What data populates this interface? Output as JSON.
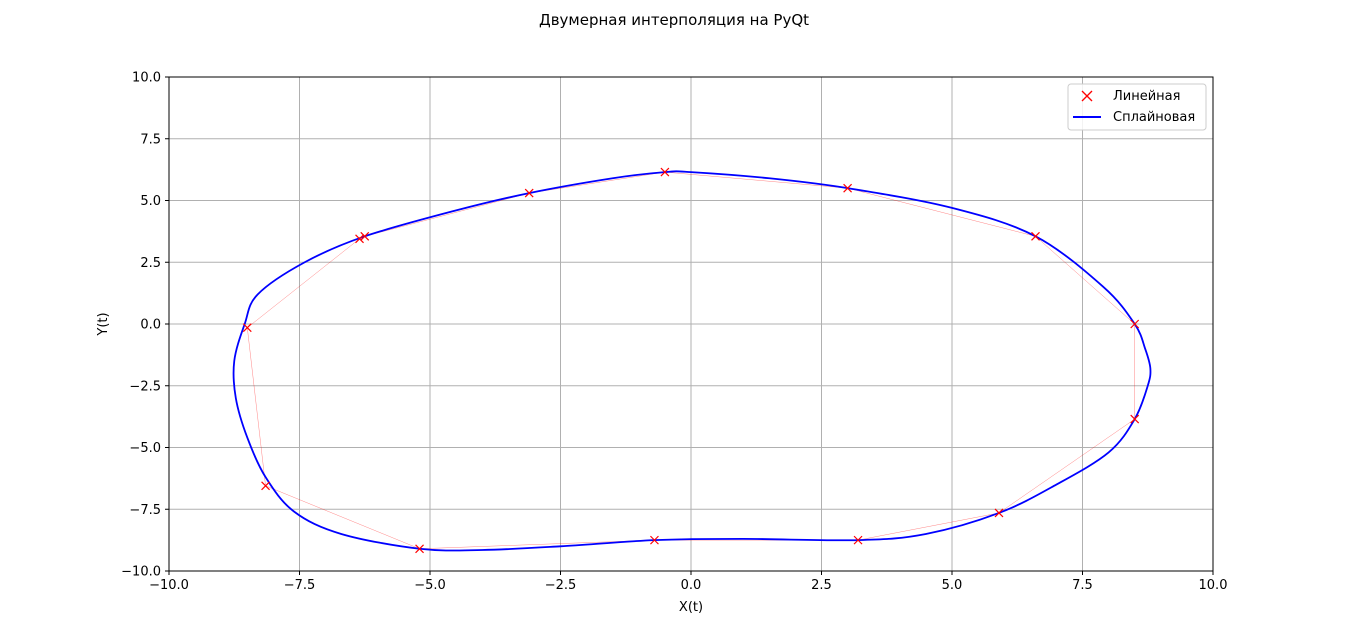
{
  "chart_data": {
    "type": "line",
    "title": "Двумерная интерполяция на PyQt",
    "xlabel": "X(t)",
    "ylabel": "Y(t)",
    "xlim": [
      -10,
      10
    ],
    "ylim": [
      -10,
      10
    ],
    "grid": true,
    "legend_position": "top-right",
    "x_ticks": [
      -10,
      -7.5,
      -5,
      -2.5,
      0,
      2.5,
      5,
      7.5,
      10
    ],
    "y_ticks": [
      -10,
      -7.5,
      -5,
      -2.5,
      0,
      2.5,
      5,
      7.5,
      10
    ],
    "x_tick_labels": [
      "−10.0",
      "−7.5",
      "−5.0",
      "−2.5",
      "0.0",
      "2.5",
      "5.0",
      "7.5",
      "10.0"
    ],
    "y_tick_labels": [
      "−10.0",
      "−7.5",
      "−5.0",
      "−2.5",
      "0.0",
      "2.5",
      "5.0",
      "7.5",
      "10.0"
    ],
    "series": [
      {
        "name": "Линейная",
        "color": "#ff0000",
        "marker": "x",
        "points": [
          [
            8.5,
            0.0
          ],
          [
            6.6,
            3.55
          ],
          [
            3.0,
            5.5
          ],
          [
            -0.5,
            6.15
          ],
          [
            -3.1,
            5.3
          ],
          [
            -6.25,
            3.55
          ],
          [
            -6.35,
            3.45
          ],
          [
            -8.5,
            -0.15
          ],
          [
            -8.15,
            -6.55
          ],
          [
            -5.2,
            -9.1
          ],
          [
            -0.7,
            -8.75
          ],
          [
            3.2,
            -8.75
          ],
          [
            5.9,
            -7.65
          ],
          [
            8.5,
            -3.85
          ],
          [
            8.5,
            0.0
          ]
        ]
      },
      {
        "name": "Сплайновая",
        "color": "#0000ff",
        "points": [
          [
            8.5,
            0.0
          ],
          [
            7.9,
            1.5
          ],
          [
            6.6,
            3.55
          ],
          [
            5.0,
            4.7
          ],
          [
            3.0,
            5.5
          ],
          [
            1.5,
            5.9
          ],
          [
            0.0,
            6.15
          ],
          [
            -0.5,
            6.15
          ],
          [
            -1.5,
            5.9
          ],
          [
            -3.1,
            5.3
          ],
          [
            -4.5,
            4.6
          ],
          [
            -6.25,
            3.55
          ],
          [
            -7.4,
            2.5
          ],
          [
            -8.3,
            1.2
          ],
          [
            -8.55,
            0.0
          ],
          [
            -8.75,
            -1.5
          ],
          [
            -8.72,
            -3.0
          ],
          [
            -8.5,
            -4.6
          ],
          [
            -8.15,
            -6.2
          ],
          [
            -7.6,
            -7.6
          ],
          [
            -6.7,
            -8.5
          ],
          [
            -5.2,
            -9.1
          ],
          [
            -4.0,
            -9.15
          ],
          [
            -2.5,
            -9.0
          ],
          [
            -0.7,
            -8.75
          ],
          [
            1.0,
            -8.7
          ],
          [
            3.2,
            -8.75
          ],
          [
            4.5,
            -8.5
          ],
          [
            5.9,
            -7.65
          ],
          [
            7.0,
            -6.5
          ],
          [
            8.0,
            -5.2
          ],
          [
            8.5,
            -3.85
          ],
          [
            8.75,
            -2.5
          ],
          [
            8.8,
            -1.8
          ],
          [
            8.7,
            -1.0
          ],
          [
            8.5,
            0.0
          ]
        ]
      }
    ]
  }
}
